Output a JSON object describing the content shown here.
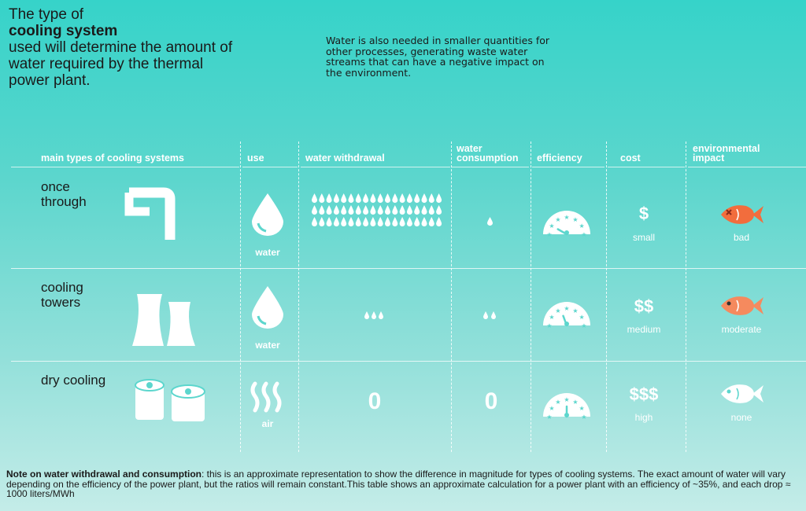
{
  "title": {
    "line1": "The type of",
    "bold": "cooling system",
    "rest": "used will determine the amount of water required by the thermal power plant."
  },
  "intro_note": "Water is also needed in smaller quantities for other processes, generating waste water streams that can have a negative impact on the environment.",
  "headers": {
    "types": "main types of cooling systems",
    "use": "use",
    "withdrawal": "water withdrawal",
    "consumption": "water consumption",
    "efficiency": "efficiency",
    "cost": "cost",
    "impact": "environmental impact"
  },
  "rows": [
    {
      "type": "once through",
      "use": "water",
      "use_icon": "water-drop-icon",
      "withdrawal_drops": 54,
      "consumption_drops": 1,
      "cost_symbol": "$",
      "cost": "small",
      "impact": "bad",
      "fish_color": "#f26d3d"
    },
    {
      "type": "cooling towers",
      "use": "water",
      "use_icon": "water-drop-icon",
      "withdrawal_drops": 3,
      "consumption_drops": 2,
      "cost_symbol": "$$",
      "cost": "medium",
      "impact": "moderate",
      "fish_color": "#f58a5e"
    },
    {
      "type": "dry cooling",
      "use": "air",
      "use_icon": "air-waves-icon",
      "withdrawal": "0",
      "consumption": "0",
      "cost_symbol": "$$$",
      "cost": "high",
      "impact": "none",
      "fish_color": "#ffffff"
    }
  ],
  "footnote": {
    "bold": "Note on water withdrawal and consumption",
    "text": ": this is an approximate representation to show the difference in magnitude for types of cooling systems. The exact amount of water will vary depending on the efficiency of the power plant, but the ratios will remain constant.This table shows an approximate calculation for a power plant with an efficiency of ~35%, and each drop ≈ 1000 liters/MWh"
  }
}
